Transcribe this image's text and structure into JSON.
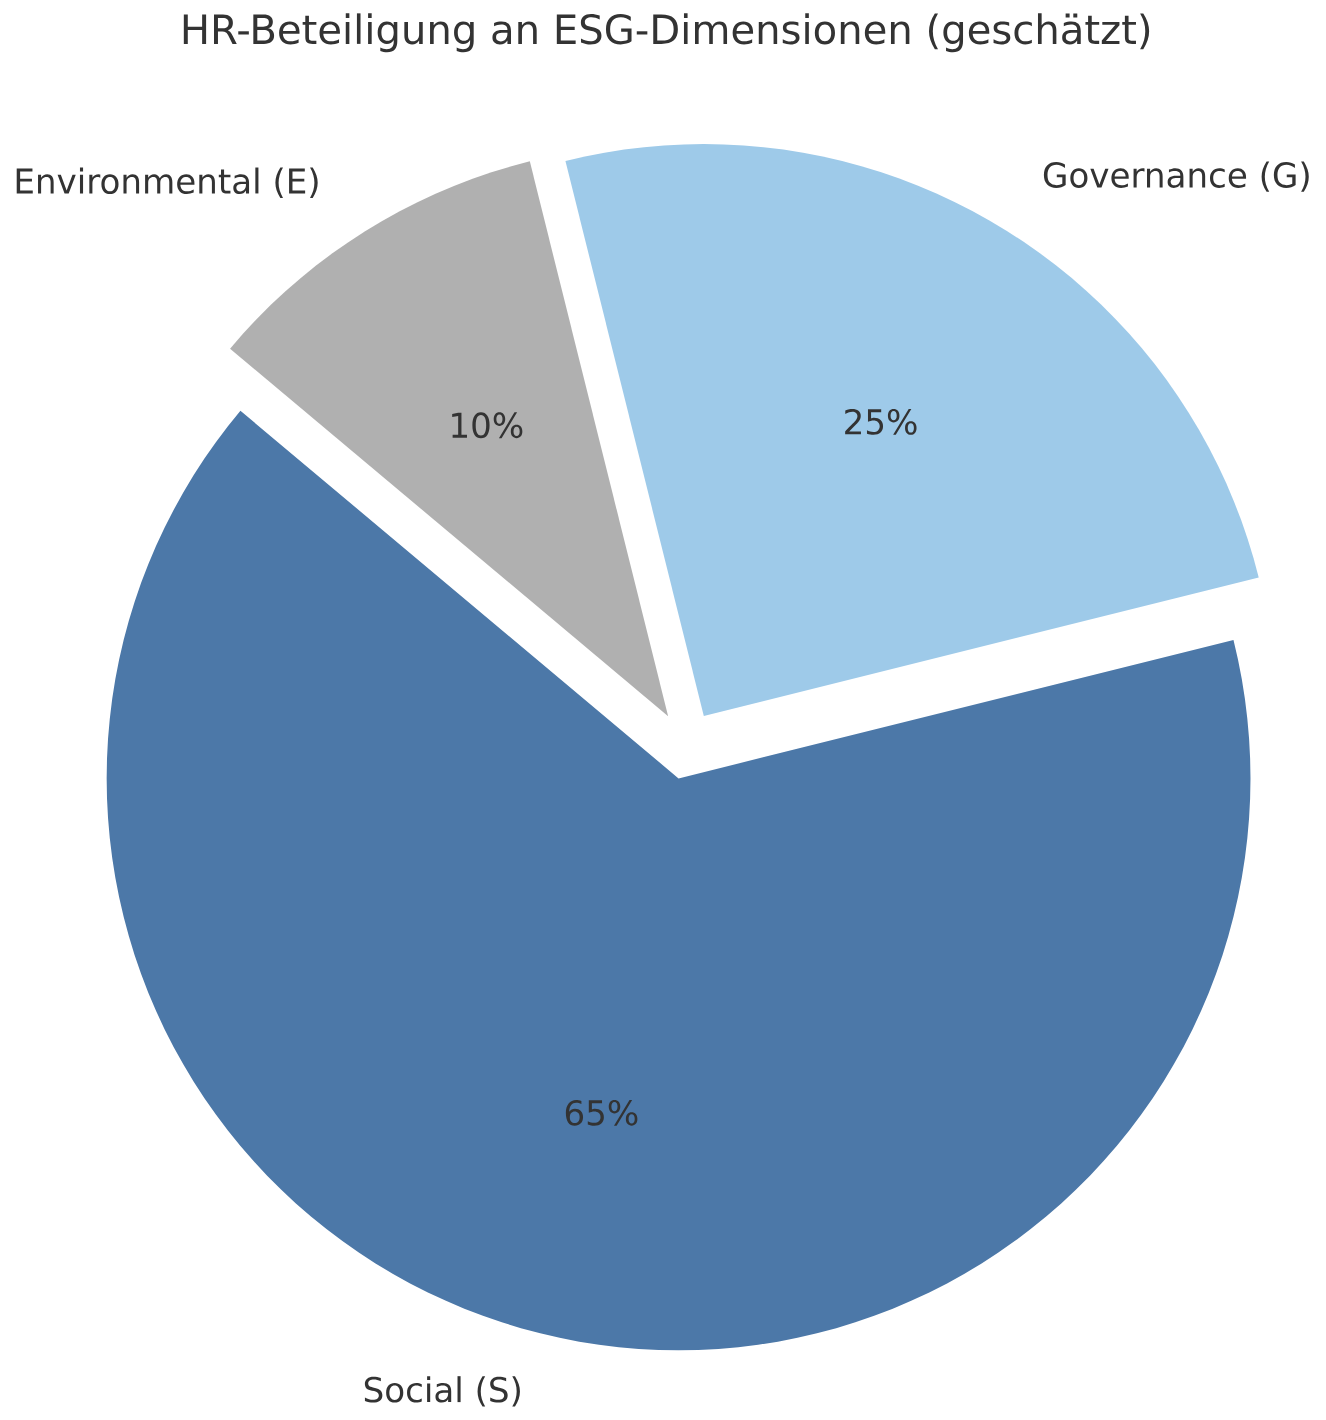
{
  "chart_data": {
    "type": "pie",
    "title": "HR-Beteiligung an ESG-Dimensionen (geschätzt)",
    "categories": [
      "Environmental (E)",
      "Governance (G)",
      "Social (S)"
    ],
    "values": [
      10,
      25,
      65
    ],
    "colors": [
      "#b0b0b0",
      "#9ecae9",
      "#4c78a8"
    ],
    "value_labels": [
      "10%",
      "25%",
      "65%"
    ]
  }
}
